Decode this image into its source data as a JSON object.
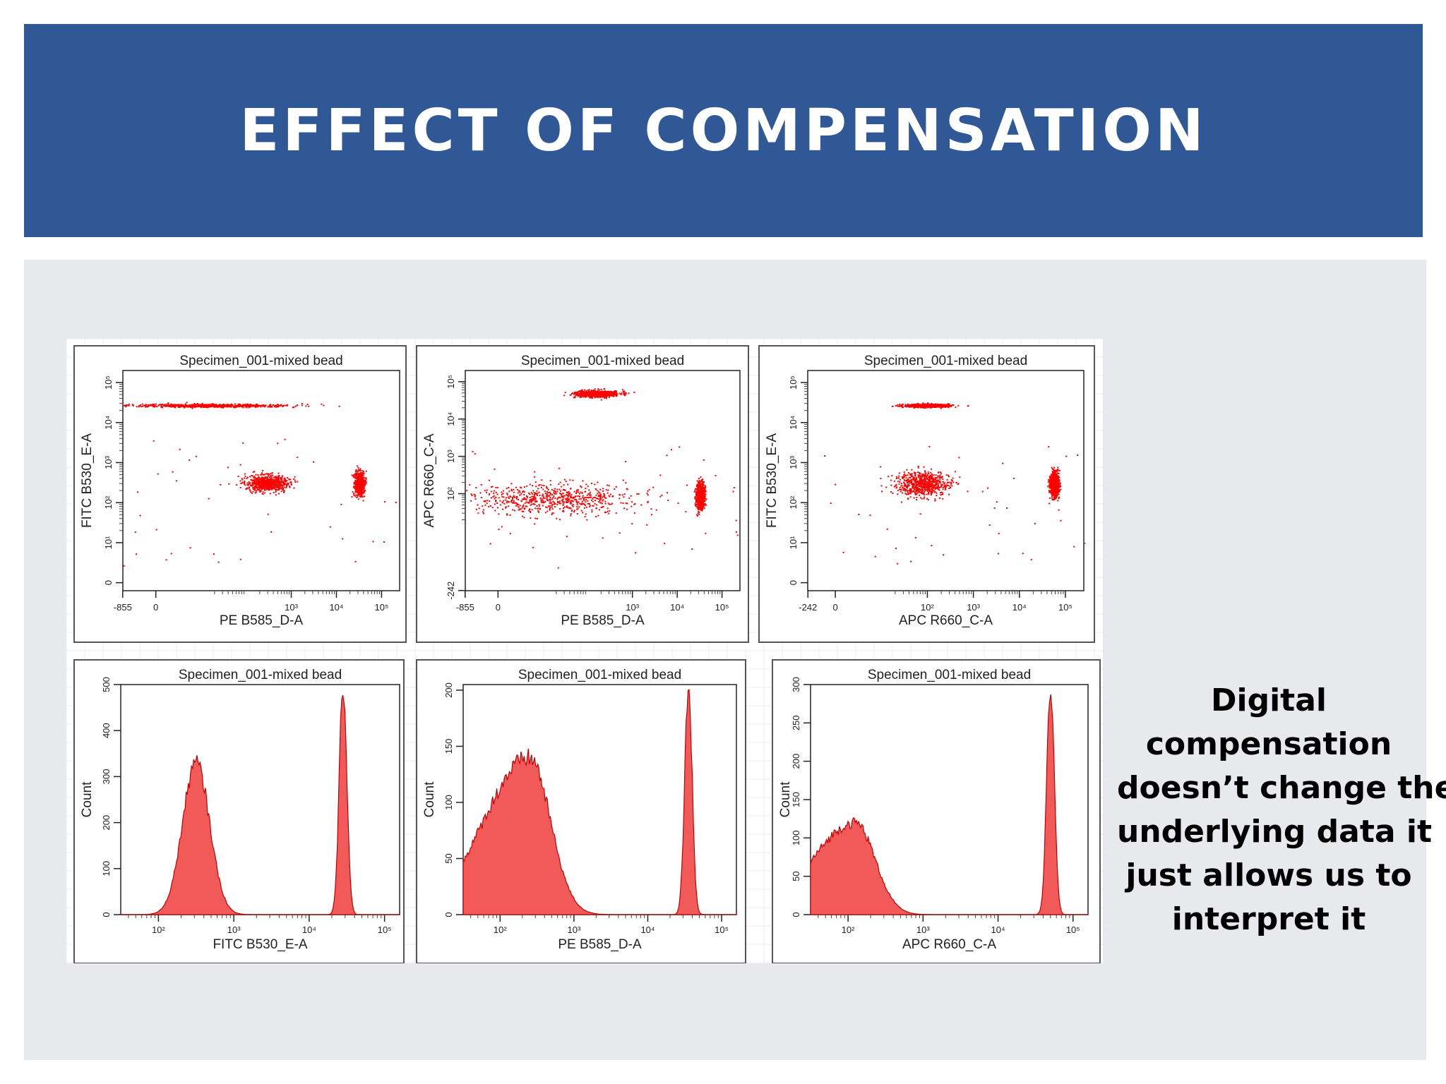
{
  "slide": {
    "title": "EFFECT OF COMPENSATION",
    "caption_lines": [
      "Digital",
      "compensation",
      "doesn’t change the",
      "underlying data it",
      "just allows us to",
      "interpret it"
    ],
    "colors": {
      "header": "#305796",
      "content_bg": "#e8e9ec",
      "event": "#ff0000",
      "histogram_fill": "#f25a5a"
    }
  },
  "chart_data": [
    {
      "type": "scatter",
      "title": "Specimen_001-mixed bead",
      "xlabel": "PE B585_D-A",
      "ylabel": "FITC B530_E-A",
      "xticks": [
        "-855",
        "0",
        "10³",
        "10⁴",
        "10⁵"
      ],
      "yticks": [
        "0",
        "10¹",
        "10²",
        "10³",
        "10⁴",
        "10⁵"
      ],
      "populations": [
        {
          "x": [
            -300,
            1000
          ],
          "y": [
            25000,
            30000
          ]
        },
        {
          "x": [
            100,
            800
          ],
          "y": [
            200,
            500
          ]
        },
        {
          "x": [
            25000,
            40000
          ],
          "y": [
            150,
            600
          ]
        }
      ]
    },
    {
      "type": "scatter",
      "title": "Specimen_001-mixed bead",
      "xlabel": "PE B585_D-A",
      "ylabel": "APC R660_C-A",
      "xticks": [
        "-855",
        "0",
        "10³",
        "10⁴",
        "10⁵"
      ],
      "yticks": [
        "-242",
        "10²",
        "10³",
        "10⁴",
        "10⁵"
      ],
      "populations": [
        {
          "x": [
            50,
            500
          ],
          "y": [
            40000,
            60000
          ]
        },
        {
          "x": [
            -600,
            1200
          ],
          "y": [
            30,
            200
          ]
        },
        {
          "x": [
            25000,
            40000
          ],
          "y": [
            40,
            200
          ]
        }
      ]
    },
    {
      "type": "scatter",
      "title": "Specimen_001-mixed bead",
      "xlabel": "APC R660_C-A",
      "ylabel": "FITC B530_E-A",
      "xticks": [
        "-242",
        "0",
        "10²",
        "10³",
        "10⁴",
        "10⁵"
      ],
      "yticks": [
        "0",
        "10¹",
        "10²",
        "10³",
        "10⁴",
        "10⁵"
      ],
      "populations": [
        {
          "x": [
            30,
            300
          ],
          "y": [
            25000,
            30000
          ]
        },
        {
          "x": [
            20,
            300
          ],
          "y": [
            150,
            600
          ]
        },
        {
          "x": [
            45000,
            70000
          ],
          "y": [
            150,
            600
          ]
        }
      ]
    },
    {
      "type": "area",
      "title": "Specimen_001-mixed bead",
      "xlabel": "FITC B530_E-A",
      "ylabel": "Count",
      "xticks": [
        "10²",
        "10³",
        "10⁴",
        "10⁵"
      ],
      "yticks": [
        "0",
        "100",
        "200",
        "300",
        "400",
        "500"
      ],
      "ylim": [
        0,
        500
      ],
      "x_log_range": [
        1.5,
        5.2
      ],
      "peaks": [
        {
          "center_log10": 2.5,
          "height": 330
        },
        {
          "center_log10": 4.45,
          "height": 500
        }
      ]
    },
    {
      "type": "area",
      "title": "Specimen_001-mixed bead",
      "xlabel": "PE B585_D-A",
      "ylabel": "Count",
      "xticks": [
        "10²",
        "10³",
        "10⁴",
        "10⁵"
      ],
      "yticks": [
        "0",
        "50",
        "100",
        "150",
        "200"
      ],
      "ylim": [
        0,
        205
      ],
      "x_log_range": [
        1.5,
        5.2
      ],
      "peaks": [
        {
          "center_log10": 2.4,
          "height": 140
        },
        {
          "center_log10": 4.55,
          "height": 205
        }
      ]
    },
    {
      "type": "area",
      "title": "Specimen_001-mixed bead",
      "xlabel": "APC R660_C-A",
      "ylabel": "Count",
      "xticks": [
        "10²",
        "10³",
        "10⁴",
        "10⁵"
      ],
      "yticks": [
        "0",
        "50",
        "100",
        "150",
        "200",
        "250",
        "300"
      ],
      "ylim": [
        0,
        300
      ],
      "x_log_range": [
        1.5,
        5.2
      ],
      "peaks": [
        {
          "center_log10": 2.1,
          "height": 120
        },
        {
          "center_log10": 4.7,
          "height": 300
        }
      ]
    }
  ]
}
